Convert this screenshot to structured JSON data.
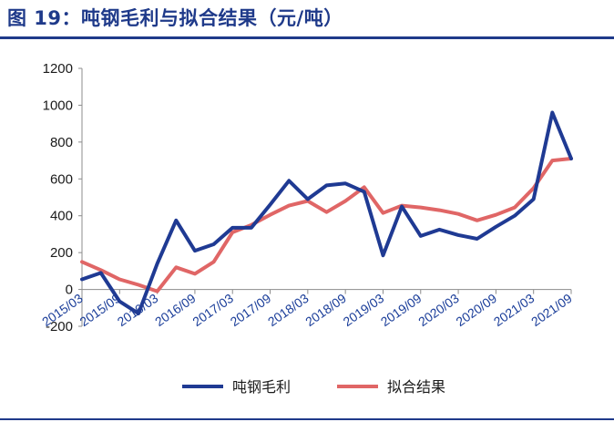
{
  "figure": {
    "title": "图 19：吨钢毛利与拟合结果（元/吨）"
  },
  "chart_data": {
    "type": "line",
    "title": "",
    "xlabel": "",
    "ylabel": "",
    "ylim": [
      -200,
      1200
    ],
    "yticks": [
      "-200",
      "0",
      "200",
      "400",
      "600",
      "800",
      "1000",
      "1200"
    ],
    "grid": false,
    "legend_position": "bottom",
    "x_tick_labels": [
      "2015/03",
      "2015/09",
      "2016/03",
      "2016/09",
      "2017/03",
      "2017/09",
      "2018/03",
      "2018/09",
      "2019/03",
      "2019/09",
      "2020/03",
      "2020/09",
      "2021/03",
      "2021/09"
    ],
    "x": [
      "2015/03",
      "2015/06",
      "2015/09",
      "2015/12",
      "2016/03",
      "2016/06",
      "2016/09",
      "2016/12",
      "2017/03",
      "2017/06",
      "2017/09",
      "2017/12",
      "2018/03",
      "2018/06",
      "2018/09",
      "2018/12",
      "2019/03",
      "2019/06",
      "2019/09",
      "2019/12",
      "2020/03",
      "2020/06",
      "2020/09",
      "2020/12",
      "2021/03",
      "2021/06",
      "2021/09"
    ],
    "series": [
      {
        "name": "吨钢毛利",
        "color": "#1f3a93",
        "values": [
          55,
          90,
          -65,
          -130,
          140,
          375,
          210,
          245,
          335,
          335,
          460,
          590,
          490,
          565,
          575,
          530,
          185,
          450,
          290,
          325,
          295,
          275,
          340,
          400,
          490,
          960,
          710
        ]
      },
      {
        "name": "拟合结果",
        "color": "#e06666",
        "values": [
          150,
          105,
          55,
          25,
          -10,
          120,
          85,
          150,
          310,
          350,
          405,
          455,
          480,
          420,
          480,
          555,
          415,
          455,
          445,
          430,
          410,
          375,
          405,
          445,
          550,
          700,
          710
        ]
      }
    ]
  }
}
